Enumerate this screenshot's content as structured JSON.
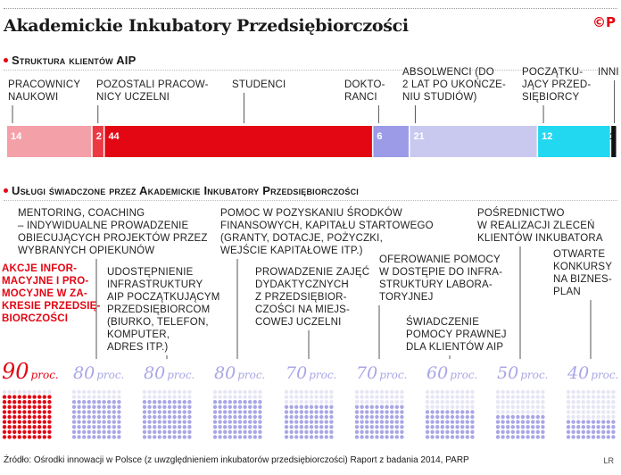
{
  "title": "Akademickie Inkubatory Przedsiębiorczości",
  "logo": "©P",
  "section1": {
    "title": "Struktura klientów AIP"
  },
  "section2": {
    "title": "Usługi świadczone przez Akademickie Inkubatory Przedsiębiorczości"
  },
  "footer": "Źródło: Ośrodki innowacji w Polsce (z uwzględnieniem inkubatorów przedsiębiorczości) Raport z badania 2014, PARP",
  "credit": "LR",
  "chart_data": [
    {
      "type": "bar",
      "title": "Struktura klientów AIP",
      "stacked": true,
      "categories": [
        "PRACOWNICY NAUKOWI",
        "POZOSTALI PRACOWNICY UCZELNI",
        "STUDENCI",
        "DOKTORANCI",
        "ABSOLWENCI (DO 2 LAT PO UKOŃCZENIU STUDIÓW)",
        "POCZĄTKUJĄCY PRZEDSIĘBIORCY",
        "INNI"
      ],
      "label_lines": [
        [
          "PRACOWNICY",
          "NAUKOWI"
        ],
        [
          "POZOSTALI PRACOW-",
          "NICY UCZELNI"
        ],
        [
          "STUDENCI"
        ],
        [
          "DOKTO-",
          "RANCI"
        ],
        [
          "ABSOLWENCI (DO",
          "2 LAT PO UKOŃCZE-",
          "NIU STUDIÓW)"
        ],
        [
          "POCZĄTKU-",
          "JĄCY PRZED-",
          "SIĘBIORCY"
        ],
        [
          "INNI"
        ]
      ],
      "values": [
        14,
        2,
        44,
        6,
        21,
        12,
        1
      ],
      "colors": [
        "#f4a0a8",
        "#ec3a45",
        "#e30613",
        "#9b9be8",
        "#c9c9f0",
        "#22d8f0",
        "#111111"
      ]
    },
    {
      "type": "bar",
      "title": "Usługi świadczone przez Akademickie Inkubatory Przedsiębiorczości",
      "unit": "proc.",
      "categories": [
        "AKCJE INFORMACYJNE I PROMOCYJNE W ZAKRESIE PRZEDSIĘBIORCZOŚCI",
        "MENTORING, COACHING – INDYWIDUALNE PROWADZENIE OBIECUJĄCYCH PROJEKTÓW PRZEZ WYBRANYCH OPIEKUNÓW",
        "UDOSTĘPNIENIE INFRASTRUKTURY AIP POCZĄTKUJĄCYM PRZEDSIĘBIORCOM (BIURKO, TELEFON, KOMPUTER, ADRES ITP.)",
        "POMOC W POZYSKANIU ŚRODKÓW FINANSOWYCH, KAPITAŁU STARTOWEGO (GRANTY, DOTACJE, POŻYCZKI, WEJŚCIE KAPITAŁOWE ITP.)",
        "PROWADZENIE ZAJĘĆ DYDAKTYCZNYCH Z PRZEDSIĘBIORCZOŚCI NA MIEJSCOWEJ UCZELNI",
        "OFEROWANIE POMOCY W DOSTĘPIE DO INFRASTRUKTURY LABORATORYJNEJ",
        "ŚWIADCZENIE POMOCY PRAWNEJ DLA KLIENTÓW AIP",
        "POŚREDNICTWO W REALIZACJI ZLECEŃ KLIENTÓW INKUBATORA",
        "OTWARTE KONKURSY NA BIZNESPLAN"
      ],
      "values": [
        90,
        80,
        80,
        80,
        70,
        70,
        60,
        50,
        40
      ],
      "value_labels": [
        "90",
        "80",
        "80",
        "80",
        "70",
        "70",
        "60",
        "50",
        "40"
      ],
      "highlight_color": "#e30613",
      "base_color": "#a9a6e6",
      "empty_color": "#e6e6f5"
    }
  ],
  "service_labels": [
    [
      "AKCJE INFOR-",
      "MACYJNE I PRO-",
      "MOCYJNE W ZA-",
      "KRESIE PRZEDSIĘ-",
      "BIORCZOŚCI"
    ],
    [
      "MENTORING, COACHING",
      "– INDYWIDUALNE PROWADZENIE",
      "OBIECUJĄCYCH PROJEKTÓW PRZEZ",
      "WYBRANYCH OPIEKUNÓW"
    ],
    [
      "UDOSTĘPNIENIE",
      "INFRASTRUKTURY",
      "AIP POCZĄTKUJĄCYM",
      "PRZEDSIĘBIORCOM",
      "(BIURKO, TELEFON,",
      "KOMPUTER,",
      "ADRES ITP.)"
    ],
    [
      "POMOC W POZYSKANIU ŚRODKÓW",
      "FINANSOWYCH, KAPITAŁU STARTOWEGO",
      "(GRANTY, DOTACJE, POŻYCZKI,",
      "WEJŚCIE KAPITAŁOWE ITP.)"
    ],
    [
      "PROWADZENIE ZAJĘĆ",
      "DYDAKTYCZNYCH",
      "Z PRZEDSIĘBIOR-",
      "CZOŚCI NA MIEJS-",
      "COWEJ UCZELNI"
    ],
    [
      "OFEROWANIE POMOCY",
      "W DOSTĘPIE DO INFRA-",
      "STRUKTURY LABORA-",
      "TORYJNEJ"
    ],
    [
      "ŚWIADCZENIE",
      "POMOCY PRAWNEJ",
      "DLA KLIENTÓW AIP"
    ],
    [
      "POŚREDNICTWO",
      "W REALIZACJI ZLECEŃ",
      "KLIENTÓW INKUBATORA"
    ],
    [
      "OTWARTE",
      "KONKURSY",
      "NA BIZNES-",
      "PLAN"
    ]
  ]
}
